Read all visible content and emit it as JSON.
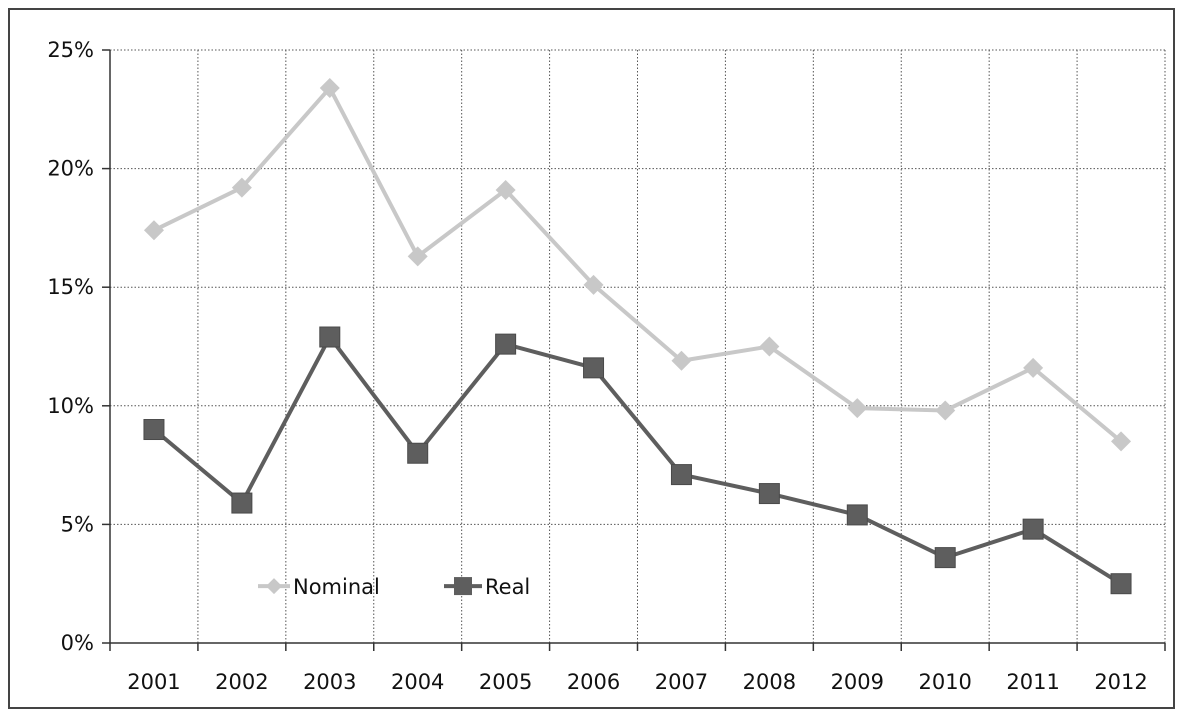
{
  "chart_data": {
    "type": "line",
    "title": "",
    "xlabel": "",
    "ylabel": "",
    "categories": [
      "2001",
      "2002",
      "2003",
      "2004",
      "2005",
      "2006",
      "2007",
      "2008",
      "2009",
      "2010",
      "2011",
      "2012"
    ],
    "ylim": [
      0,
      25
    ],
    "yticks": [
      0,
      5,
      10,
      15,
      20,
      25
    ],
    "ytick_labels": [
      "0%",
      "5%",
      "10%",
      "15%",
      "20%",
      "25%"
    ],
    "grid": true,
    "legend_position": "bottom-left",
    "series": [
      {
        "name": "Nominal",
        "marker": "diamond",
        "color": "#c8c8c8",
        "values": [
          17.4,
          19.2,
          23.4,
          16.3,
          19.1,
          15.1,
          11.9,
          12.5,
          9.9,
          9.8,
          11.6,
          8.5
        ]
      },
      {
        "name": "Real",
        "marker": "square",
        "color": "#5e5e5e",
        "values": [
          9.0,
          5.9,
          12.9,
          8.0,
          12.6,
          11.6,
          7.1,
          6.3,
          5.4,
          3.6,
          4.8,
          2.5
        ]
      }
    ]
  }
}
